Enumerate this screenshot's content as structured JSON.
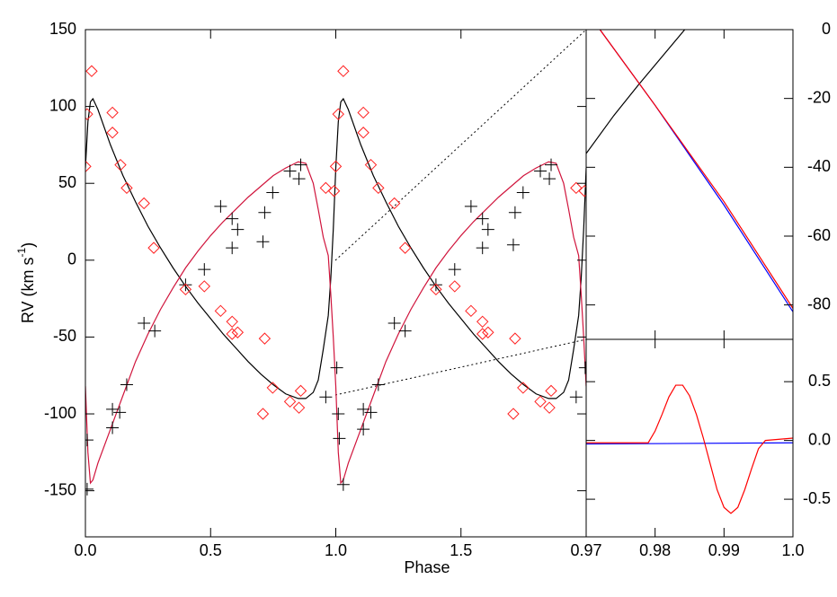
{
  "chart_data": [
    {
      "type": "line",
      "x_label": "Phase",
      "y_label": [
        "RV (km s",
        "-1",
        ")"
      ],
      "xlim": [
        0,
        2
      ],
      "ylim": [
        -180,
        150
      ],
      "xticks": [
        {
          "value": 0,
          "label": "0.0"
        },
        {
          "value": 0.5,
          "label": "0.5"
        },
        {
          "value": 1,
          "label": "1.0"
        },
        {
          "value": 1.5,
          "label": "1.5"
        }
      ],
      "yticks": [
        150,
        100,
        50,
        0,
        -50,
        -100,
        -150
      ],
      "series": [
        {
          "kind": "line",
          "color": "#000000",
          "x": [
            0,
            0.01,
            0.02,
            0.03,
            0.05,
            0.1,
            0.15,
            0.2,
            0.25,
            0.3,
            0.35,
            0.4,
            0.45,
            0.5,
            0.55,
            0.6,
            0.65,
            0.7,
            0.75,
            0.8,
            0.85,
            0.88,
            0.91,
            0.93,
            0.95,
            0.97,
            0.98,
            0.99,
            1,
            1.01,
            1.02,
            1.03,
            1.05,
            1.1,
            1.15,
            1.2,
            1.25,
            1.3,
            1.35,
            1.4,
            1.45,
            1.5,
            1.55,
            1.6,
            1.65,
            1.7,
            1.75,
            1.8,
            1.85,
            1.88,
            1.91,
            1.93,
            1.95,
            1.97,
            1.98,
            1.99,
            2
          ],
          "values": [
            60,
            90,
            103,
            105,
            98,
            75,
            55,
            38,
            22,
            8,
            -5,
            -17,
            -28,
            -38,
            -48,
            -57,
            -66,
            -74,
            -81,
            -87,
            -90,
            -90,
            -86,
            -78,
            -58,
            -36,
            -12,
            20,
            60,
            90,
            103,
            105,
            98,
            75,
            55,
            38,
            22,
            8,
            -5,
            -17,
            -28,
            -38,
            -48,
            -57,
            -66,
            -74,
            -81,
            -87,
            -90,
            -90,
            -86,
            -78,
            -58,
            -36,
            -12,
            20,
            60
          ]
        },
        {
          "kind": "line",
          "color": "#d0143c",
          "x": [
            0,
            0.01,
            0.02,
            0.03,
            0.05,
            0.1,
            0.15,
            0.2,
            0.25,
            0.3,
            0.35,
            0.4,
            0.45,
            0.5,
            0.55,
            0.6,
            0.65,
            0.7,
            0.75,
            0.8,
            0.85,
            0.88,
            0.91,
            0.93,
            0.95,
            0.97,
            0.98,
            0.99,
            1,
            1.01,
            1.02,
            1.03,
            1.05,
            1.1,
            1.15,
            1.2,
            1.25,
            1.3,
            1.35,
            1.4,
            1.45,
            1.5,
            1.55,
            1.6,
            1.65,
            1.7,
            1.75,
            1.8,
            1.85,
            1.88,
            1.91,
            1.93,
            1.95,
            1.97,
            1.98,
            1.99,
            2
          ],
          "values": [
            -82,
            -125,
            -145,
            -143,
            -132,
            -110,
            -88,
            -66,
            -48,
            -32,
            -18,
            -5,
            6,
            16,
            25,
            33,
            41,
            48,
            55,
            60,
            64,
            63,
            50,
            33,
            15,
            3,
            -22,
            -50,
            -82,
            -125,
            -145,
            -143,
            -132,
            -110,
            -88,
            -66,
            -48,
            -32,
            -18,
            -5,
            6,
            16,
            25,
            33,
            41,
            48,
            55,
            60,
            64,
            63,
            50,
            33,
            15,
            3,
            -22,
            -50,
            -82
          ]
        },
        {
          "kind": "plus",
          "color": "#000000",
          "x": [
            0.007,
            0.007,
            0.108,
            0.108,
            0.137,
            0.165,
            0.234,
            0.277,
            0.4,
            0.475,
            0.54,
            0.586,
            0.586,
            0.608,
            0.709,
            0.716,
            0.748,
            0.817,
            0.853,
            0.86,
            0.96,
            1.004,
            1.01,
            1.014,
            1.03,
            1.11,
            1.11,
            1.14,
            1.17,
            1.234,
            1.277,
            1.4,
            1.475,
            1.54,
            1.586,
            1.586,
            1.608,
            1.709,
            1.716,
            1.748,
            1.817,
            1.853,
            1.86,
            1.96,
            1.996
          ],
          "values": [
            -117,
            -149,
            -97,
            -109,
            -99,
            -81,
            -41,
            -46,
            -16,
            -6,
            35,
            27,
            8,
            20,
            12,
            31,
            44,
            58,
            53,
            62,
            -89,
            -70,
            -100,
            -116,
            -146,
            -97,
            -110,
            -99,
            -81,
            -41,
            -46,
            -16,
            -6,
            35,
            27,
            8,
            20,
            10,
            31,
            44,
            58,
            53,
            62,
            -89,
            -70
          ]
        },
        {
          "kind": "diamond",
          "color": "#ff2020",
          "x": [
            0,
            0.007,
            0.025,
            0.108,
            0.108,
            0.14,
            0.165,
            0.234,
            0.273,
            0.4,
            0.475,
            0.54,
            0.586,
            0.586,
            0.608,
            0.716,
            0.709,
            0.748,
            0.817,
            0.853,
            0.86,
            0.96,
            0.993,
            1,
            1.01,
            1.03,
            1.11,
            1.11,
            1.14,
            1.17,
            1.234,
            1.277,
            1.4,
            1.475,
            1.54,
            1.586,
            1.586,
            1.608,
            1.716,
            1.709,
            1.748,
            1.817,
            1.853,
            1.86,
            1.96,
            1.993
          ],
          "values": [
            61,
            95,
            123,
            96,
            83,
            62,
            47,
            37,
            8,
            -19,
            -17,
            -33,
            -40,
            -48,
            -47,
            -51,
            -100,
            -83,
            -92,
            -96,
            -85,
            47,
            45,
            61,
            95,
            123,
            96,
            83,
            62,
            47,
            37,
            8,
            -19,
            -17,
            -33,
            -40,
            -48,
            -47,
            -51,
            -100,
            -83,
            -92,
            -96,
            -85,
            47,
            45
          ]
        }
      ]
    },
    {
      "type": "line",
      "xlim": [
        0.97,
        1
      ],
      "ylim": [
        -90,
        0
      ],
      "xticks": [
        0.97,
        0.98,
        0.99,
        1
      ],
      "yticks": [
        0,
        -20,
        -40,
        -60,
        -80
      ],
      "series": [
        {
          "kind": "line",
          "color": "#000000",
          "x": [
            0.97,
            0.974,
            0.9776,
            0.9843
          ],
          "values": [
            -36,
            -25,
            -16,
            0
          ]
        },
        {
          "kind": "line",
          "color": "#0000ff",
          "x": [
            0.972,
            0.98,
            0.99,
            1
          ],
          "values": [
            0,
            -22,
            -51,
            -82
          ]
        },
        {
          "kind": "line",
          "color": "#ff0000",
          "x": [
            0.972,
            0.98,
            0.99,
            1
          ],
          "values": [
            0,
            -22,
            -50,
            -81
          ]
        }
      ]
    },
    {
      "type": "line",
      "xlim": [
        0.97,
        1
      ],
      "ylim": [
        -0.82,
        0.86
      ],
      "xticks": [
        0.97,
        0.98,
        0.99,
        {
          "value": 1,
          "label": "1.0"
        }
      ],
      "yticks": [
        0.5,
        {
          "value": 0,
          "label": "0.0"
        },
        -0.5
      ],
      "series": [
        {
          "kind": "line",
          "color": "#0000ff",
          "x": [
            0.97,
            1
          ],
          "values": [
            -0.03,
            -0.02
          ]
        },
        {
          "kind": "line",
          "color": "#ff0000",
          "x": [
            0.97,
            0.979,
            0.98,
            0.981,
            0.982,
            0.983,
            0.984,
            0.985,
            0.986,
            0.987,
            0.988,
            0.989,
            0.99,
            0.991,
            0.992,
            0.993,
            0.994,
            0.995,
            0.996,
            1
          ],
          "values": [
            -0.02,
            -0.02,
            0.08,
            0.22,
            0.37,
            0.47,
            0.47,
            0.38,
            0.22,
            0.02,
            -0.2,
            -0.42,
            -0.57,
            -0.62,
            -0.57,
            -0.42,
            -0.24,
            -0.07,
            0,
            0.02
          ]
        }
      ]
    }
  ]
}
